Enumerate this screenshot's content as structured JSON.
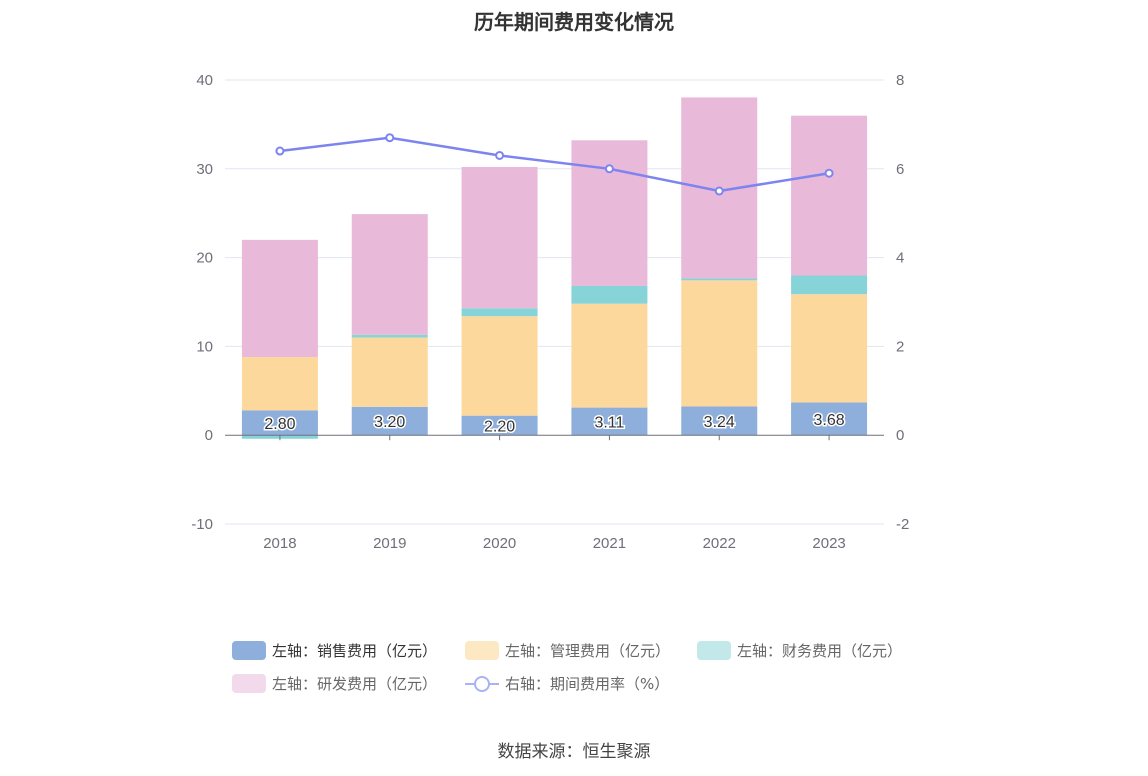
{
  "title": "历年期间费用变化情况",
  "source": "数据来源：恒生聚源",
  "chart_data": {
    "type": "bar",
    "categories": [
      "2018",
      "2019",
      "2020",
      "2021",
      "2022",
      "2023"
    ],
    "y_left": {
      "min": -10,
      "max": 40,
      "ticks": [
        -10,
        0,
        10,
        20,
        30,
        40
      ]
    },
    "y_right": {
      "min": -2,
      "max": 8,
      "ticks": [
        -2,
        0,
        2,
        4,
        6,
        8
      ]
    },
    "series": [
      {
        "name": "左轴：销售费用（亿元）",
        "color": "#8eaedc",
        "axis": "left",
        "stack": true,
        "values": [
          2.8,
          3.2,
          2.2,
          3.11,
          3.24,
          3.68
        ],
        "labels": [
          "2.80",
          "3.20",
          "2.20",
          "3.11",
          "3.24",
          "3.68"
        ]
      },
      {
        "name": "左轴：管理费用（亿元）",
        "color": "#fdd89d",
        "axis": "left",
        "stack": true,
        "values": [
          6.0,
          7.8,
          11.2,
          11.7,
          14.2,
          12.2
        ]
      },
      {
        "name": "左轴：财务费用（亿元）",
        "color": "#86d4d8",
        "axis": "left",
        "stack": true,
        "values": [
          -0.4,
          0.3,
          0.9,
          2.0,
          0.2,
          2.1
        ]
      },
      {
        "name": "左轴：研发费用（亿元）",
        "color": "#e8b9d9",
        "axis": "left",
        "stack": true,
        "values": [
          13.2,
          13.6,
          15.9,
          16.4,
          20.4,
          18.0
        ]
      },
      {
        "name": "右轴：期间费用率（%）",
        "color": "#7d84ef",
        "axis": "right",
        "type": "line",
        "values": [
          6.4,
          6.7,
          6.3,
          6.0,
          5.5,
          5.9
        ]
      }
    ],
    "legend_colors": [
      "#8eaedc",
      "#fde8c4",
      "#c2e8ea",
      "#f2d9ec",
      "#a9b2f7"
    ],
    "grid": true,
    "legend_position": "bottom"
  }
}
